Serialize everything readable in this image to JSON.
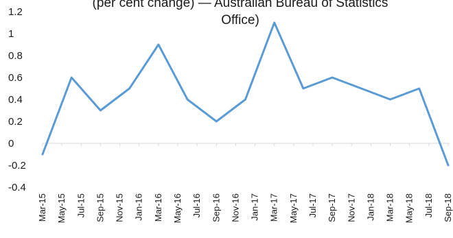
{
  "chart_data": {
    "type": "line",
    "title": "(per cent change) — Australian Bureau of Statistics Office)",
    "title_lines": [
      "(per cent change) — Australian Bureau of Statistics",
      "Office)"
    ],
    "xlabel": "",
    "ylabel": "",
    "ylim": [
      -0.4,
      1.2
    ],
    "yticks": [
      "1.2",
      "1",
      "0.8",
      "0.6",
      "0.4",
      "0.2",
      "0",
      "-0.2",
      "-0.4"
    ],
    "ytick_values": [
      1.2,
      1.0,
      0.8,
      0.6,
      0.4,
      0.2,
      0,
      -0.2,
      -0.4
    ],
    "grid": false,
    "legend": "none",
    "line_color": "#5b9bd5",
    "categories": [
      "Mar-15",
      "May-15",
      "Jul-15",
      "Sep-15",
      "Nov-15",
      "Jan-16",
      "Mar-16",
      "May-16",
      "Jul-16",
      "Sep-16",
      "Nov-16",
      "Jan-17",
      "Mar-17",
      "May-17",
      "Jul-17",
      "Sep-17",
      "Nov-17",
      "Jan-18",
      "Mar-18",
      "May-18",
      "Jul-18",
      "Sep-18"
    ],
    "points": [
      {
        "x": "Mar-15",
        "y": -0.1
      },
      {
        "x": "Jun-15",
        "y": 0.6
      },
      {
        "x": "Sep-15",
        "y": 0.3
      },
      {
        "x": "Dec-15",
        "y": 0.5
      },
      {
        "x": "Mar-16",
        "y": 0.9
      },
      {
        "x": "Jun-16",
        "y": 0.4
      },
      {
        "x": "Sep-16",
        "y": 0.2
      },
      {
        "x": "Dec-16",
        "y": 0.4
      },
      {
        "x": "Mar-17",
        "y": 1.1
      },
      {
        "x": "Jun-17",
        "y": 0.5
      },
      {
        "x": "Sep-17",
        "y": 0.6
      },
      {
        "x": "Dec-17",
        "y": 0.5
      },
      {
        "x": "Mar-18",
        "y": 0.4
      },
      {
        "x": "Jun-18",
        "y": 0.5
      },
      {
        "x": "Sep-18",
        "y": -0.2
      }
    ]
  }
}
